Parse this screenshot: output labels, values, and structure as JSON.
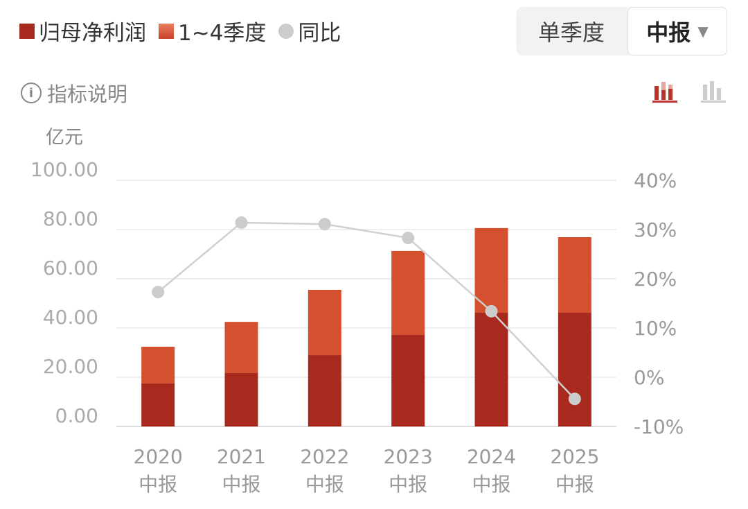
{
  "legend": {
    "items": [
      {
        "label": "归母净利润",
        "color": "#a82a1e"
      },
      {
        "label": "1~4季度",
        "color": "#d4502e"
      },
      {
        "label": "同比",
        "color": "#cccccc"
      }
    ]
  },
  "toggle": {
    "option": "单季度",
    "selected": "中报",
    "arrow": "▼"
  },
  "info": {
    "label": "指标说明",
    "icon": "info-icon"
  },
  "view_icons": {
    "active": "stacked-bar-chart-icon",
    "inactive": "bar-chart-icon",
    "active_color": "#b8332a"
  },
  "chart_data": {
    "type": "bar",
    "unit": "亿元",
    "categories": [
      [
        "2020",
        "中报"
      ],
      [
        "2021",
        "中报"
      ],
      [
        "2022",
        "中报"
      ],
      [
        "2023",
        "中报"
      ],
      [
        "2024",
        "中报"
      ],
      [
        "2025",
        "中报"
      ]
    ],
    "series": [
      {
        "name": "归母净利润",
        "type": "bar",
        "color": "#a82a1e",
        "values": [
          17.5,
          21.7,
          29.0,
          37.2,
          46.2,
          46.2
        ]
      },
      {
        "name": "1~4季度",
        "type": "bar",
        "color": "#d4502e",
        "totals": [
          32.4,
          42.5,
          55.5,
          71.3,
          80.6,
          76.9
        ]
      },
      {
        "name": "同比",
        "type": "line",
        "axis": "right",
        "color": "#cccccc",
        "values": [
          17.3,
          31.4,
          31.1,
          28.3,
          13.4,
          -4.4
        ]
      }
    ],
    "ylim": [
      0,
      100
    ],
    "yticks": [
      "0.00",
      "20.00",
      "40.00",
      "60.00",
      "80.00",
      "100.00"
    ],
    "y2lim": [
      -10,
      40
    ],
    "y2ticks": [
      "-10%",
      "0%",
      "10%",
      "20%",
      "30%",
      "40%"
    ],
    "grid": true
  }
}
